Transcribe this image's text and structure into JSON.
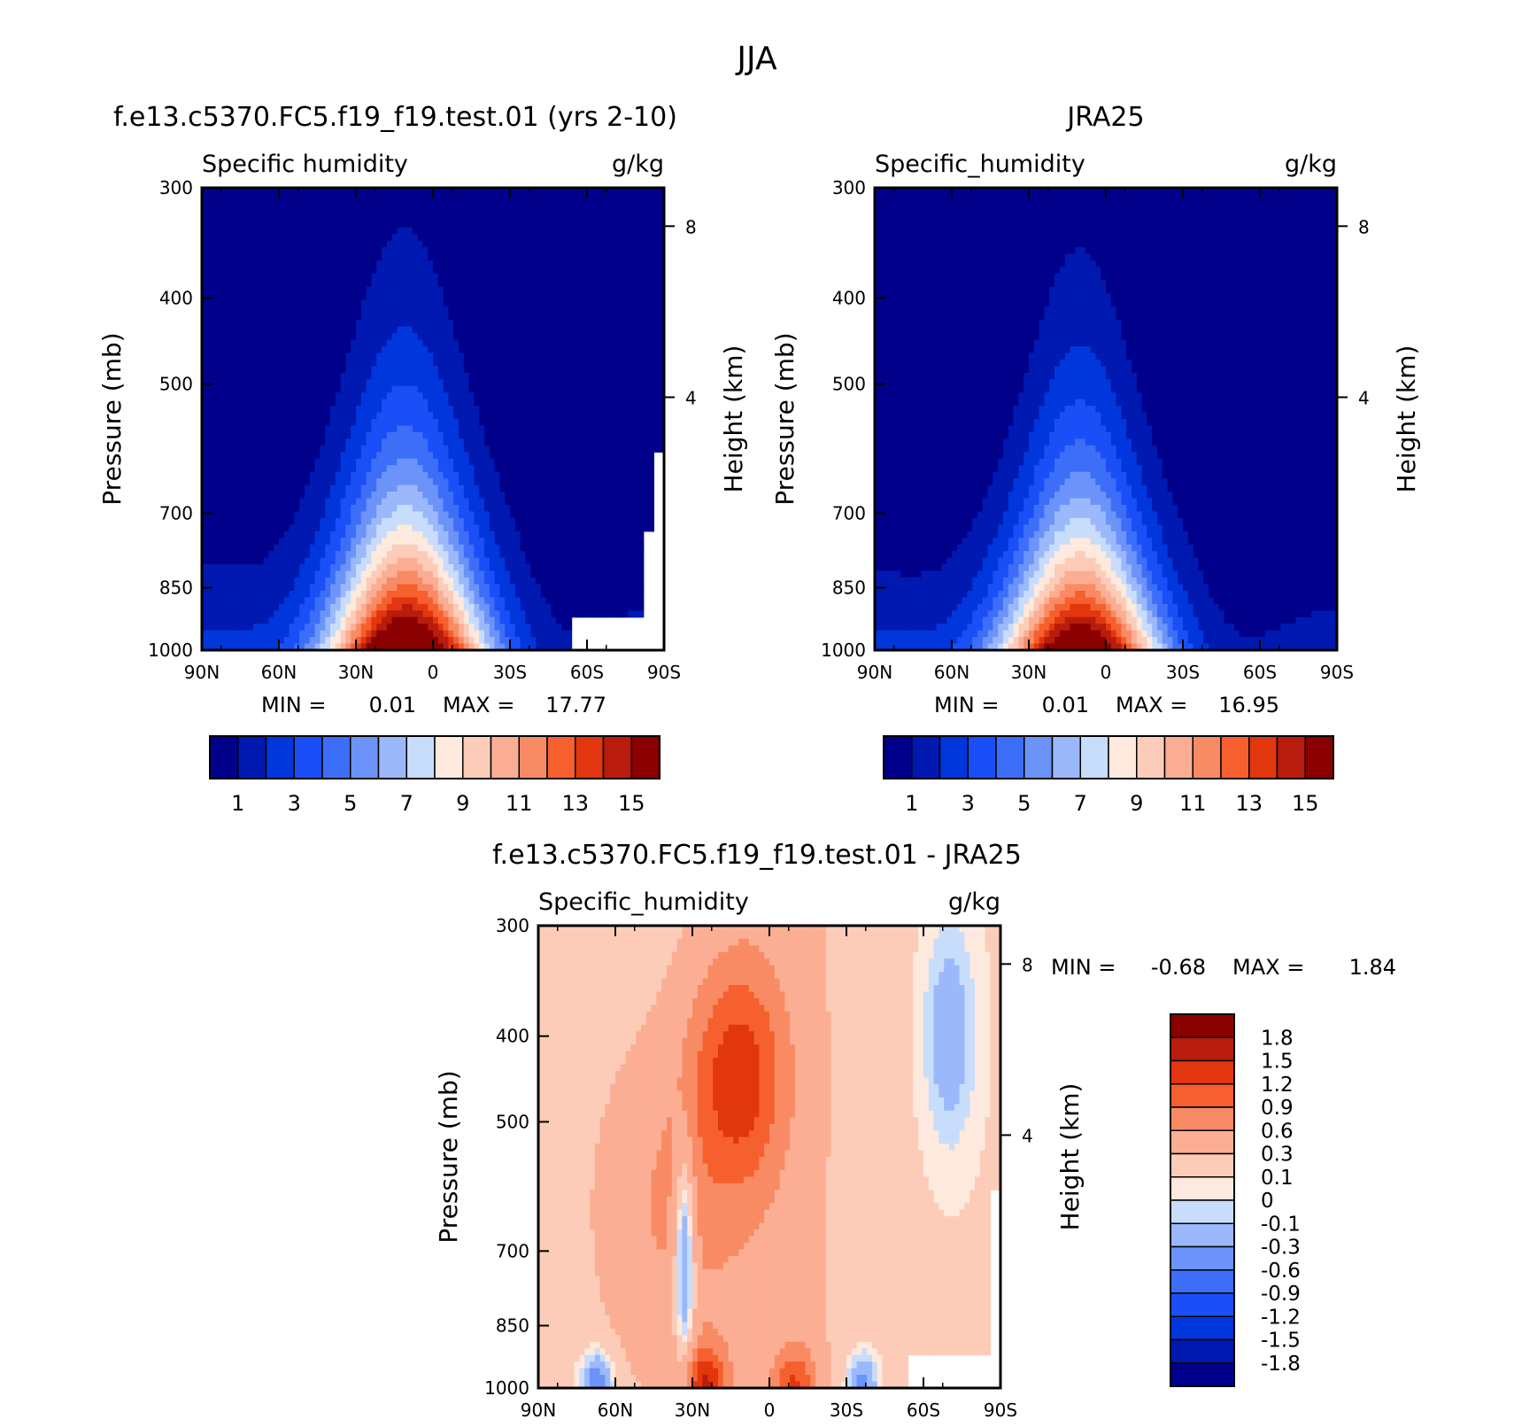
{
  "figure": {
    "title": "JJA"
  },
  "chart_data": [
    {
      "type": "heatmap",
      "id": "model",
      "title": "f.e13.c5370.FC5.f19_f19.test.01 (yrs 2-10)",
      "variable": "Specific humidity",
      "units": "g/kg",
      "ylabel": "Pressure (mb)",
      "ylabel_right": "Height (km)",
      "xticks": [
        "90N",
        "60N",
        "30N",
        "0",
        "30S",
        "60S",
        "90S"
      ],
      "yticks": [
        300,
        400,
        500,
        700,
        850,
        1000
      ],
      "yticks_right": [
        8,
        4
      ],
      "xlim": [
        "90N",
        "90S"
      ],
      "ylim": [
        1000,
        300
      ],
      "min_label": "MIN =",
      "min": "0.01",
      "max_label": "MAX =",
      "max": "17.77",
      "colorbar_labels": [
        "1",
        "3",
        "5",
        "7",
        "9",
        "11",
        "13",
        "15"
      ],
      "colors": [
        "#00008b",
        "#0019b0",
        "#0037dc",
        "#1a4ff7",
        "#3d6ef8",
        "#6b93f9",
        "#9bb8fb",
        "#c8dcfc",
        "#fde9dd",
        "#fcccb8",
        "#fbae93",
        "#f98b64",
        "#f6602e",
        "#e1360e",
        "#b71c0c",
        "#8b0000"
      ],
      "peak": 17.77
    },
    {
      "type": "heatmap",
      "id": "obs",
      "title": "JRA25",
      "variable": "Specific_humidity",
      "units": "g/kg",
      "ylabel": "Pressure (mb)",
      "ylabel_right": "Height (km)",
      "xticks": [
        "90N",
        "60N",
        "30N",
        "0",
        "30S",
        "60S",
        "90S"
      ],
      "yticks": [
        300,
        400,
        500,
        700,
        850,
        1000
      ],
      "yticks_right": [
        8,
        4
      ],
      "xlim": [
        "90N",
        "90S"
      ],
      "ylim": [
        1000,
        300
      ],
      "min_label": "MIN =",
      "min": "0.01",
      "max_label": "MAX =",
      "max": "16.95",
      "colorbar_labels": [
        "1",
        "3",
        "5",
        "7",
        "9",
        "11",
        "13",
        "15"
      ],
      "colors": [
        "#00008b",
        "#0019b0",
        "#0037dc",
        "#1a4ff7",
        "#3d6ef8",
        "#6b93f9",
        "#9bb8fb",
        "#c8dcfc",
        "#fde9dd",
        "#fcccb8",
        "#fbae93",
        "#f98b64",
        "#f6602e",
        "#e1360e",
        "#b71c0c",
        "#8b0000"
      ],
      "peak": 16.95
    },
    {
      "type": "heatmap",
      "id": "diff",
      "title": "f.e13.c5370.FC5.f19_f19.test.01 - JRA25",
      "variable": "Specific_humidity",
      "units": "g/kg",
      "ylabel": "Pressure (mb)",
      "ylabel_right": "Height (km)",
      "xticks": [
        "90N",
        "60N",
        "30N",
        "0",
        "30S",
        "60S",
        "90S"
      ],
      "yticks": [
        300,
        400,
        500,
        700,
        850,
        1000
      ],
      "yticks_right": [
        8,
        4
      ],
      "xlim": [
        "90N",
        "90S"
      ],
      "ylim": [
        1000,
        300
      ],
      "min_label": "MIN =",
      "min": "-0.68",
      "max_label": "MAX =",
      "max": "1.84",
      "colorbar_labels": [
        "1.8",
        "1.5",
        "1.2",
        "0.9",
        "0.6",
        "0.3",
        "0.1",
        "0",
        "-0.1",
        "-0.3",
        "-0.6",
        "-0.9",
        "-1.2",
        "-1.5",
        "-1.8"
      ],
      "colors": [
        "#8b0000",
        "#b71c0c",
        "#e1360e",
        "#f6602e",
        "#f98b64",
        "#fbae93",
        "#fcccb8",
        "#fde9dd",
        "#c8dcfc",
        "#9bb8fb",
        "#6b93f9",
        "#3d6ef8",
        "#1a4ff7",
        "#0037dc",
        "#0019b0",
        "#00008b"
      ]
    }
  ]
}
